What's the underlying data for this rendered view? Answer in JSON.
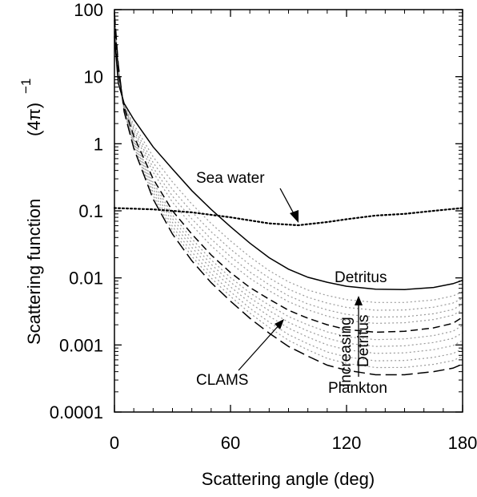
{
  "chart_data": {
    "type": "line",
    "xlabel": "Scattering angle (deg)",
    "ylabel": "Scattering function",
    "ylabel_unit": "(4π)",
    "ylabel_unit_exp": "−1",
    "xlim": [
      0,
      180
    ],
    "ylim": [
      0.0001,
      100
    ],
    "yscale": "log",
    "x_ticks": [
      0,
      60,
      120,
      180
    ],
    "y_ticks": [
      {
        "value": 100,
        "label": "100"
      },
      {
        "value": 10,
        "label": "10"
      },
      {
        "value": 1,
        "label": "1"
      },
      {
        "value": 0.1,
        "label": "0.1"
      },
      {
        "value": 0.01,
        "label": "0.01"
      },
      {
        "value": 0.001,
        "label": "0.001"
      },
      {
        "value": 0.0001,
        "label": "0.0001"
      }
    ],
    "grid": false,
    "series": [
      {
        "name": "Sea water",
        "style": "dotted",
        "color": "#000000",
        "x": [
          0,
          20,
          40,
          60,
          80,
          95,
          110,
          120,
          135,
          150,
          165,
          180
        ],
        "y": [
          0.11,
          0.105,
          0.095,
          0.08,
          0.065,
          0.061,
          0.068,
          0.075,
          0.085,
          0.09,
          0.1,
          0.11
        ]
      },
      {
        "name": "Detritus",
        "style": "solid",
        "color": "#000000",
        "x": [
          0,
          2,
          5,
          10,
          20,
          30,
          40,
          50,
          60,
          70,
          80,
          90,
          100,
          110,
          120,
          135,
          150,
          165,
          175,
          180
        ],
        "y": [
          40,
          8,
          4,
          2.3,
          0.9,
          0.42,
          0.2,
          0.105,
          0.058,
          0.033,
          0.02,
          0.0135,
          0.0102,
          0.0086,
          0.0075,
          0.0068,
          0.0067,
          0.0072,
          0.0082,
          0.0092
        ]
      },
      {
        "name": "CLAMS",
        "style": "dashed",
        "color": "#000000",
        "x": [
          0,
          2,
          5,
          10,
          20,
          30,
          40,
          50,
          60,
          70,
          80,
          90,
          100,
          110,
          120,
          135,
          150,
          165,
          175,
          180
        ],
        "y": [
          70,
          12,
          3.5,
          1.3,
          0.3,
          0.1,
          0.045,
          0.022,
          0.012,
          0.0072,
          0.0048,
          0.0033,
          0.0025,
          0.002,
          0.0017,
          0.00155,
          0.0016,
          0.0018,
          0.0021,
          0.0026
        ]
      },
      {
        "name": "Plankton",
        "style": "long-dashed",
        "color": "#000000",
        "x": [
          0,
          2,
          5,
          10,
          20,
          30,
          40,
          50,
          60,
          70,
          80,
          90,
          100,
          110,
          120,
          135,
          150,
          165,
          175,
          180
        ],
        "y": [
          90,
          15,
          3,
          0.85,
          0.15,
          0.045,
          0.018,
          0.0085,
          0.0045,
          0.0025,
          0.0015,
          0.00095,
          0.00068,
          0.0005,
          0.00042,
          0.00036,
          0.00036,
          0.0004,
          0.00045,
          0.00052
        ]
      }
    ],
    "intermediate_curves": {
      "style": "dotted",
      "color": "#9a9a9a",
      "tail_values_at_135": [
        0.0043,
        0.0033,
        0.0026,
        0.0021,
        0.0012,
        0.00095,
        0.00075,
        0.00058,
        0.00046
      ]
    },
    "annotations": [
      {
        "text": "Sea water"
      },
      {
        "text": "Detritus"
      },
      {
        "text": "CLAMS"
      },
      {
        "text": "Plankton"
      },
      {
        "text": "Increasing"
      },
      {
        "text": "Detritus"
      }
    ]
  }
}
